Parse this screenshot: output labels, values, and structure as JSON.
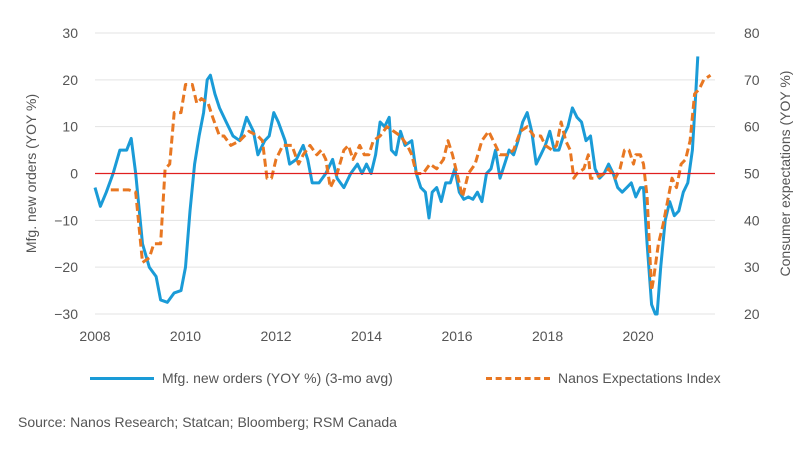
{
  "chart_data": {
    "type": "line",
    "x_range": [
      2008,
      2021.7
    ],
    "x_ticks": [
      "2008",
      "2010",
      "2012",
      "2014",
      "2016",
      "2018",
      "2020"
    ],
    "x_tick_values": [
      2008,
      2010,
      2012,
      2014,
      2016,
      2018,
      2020
    ],
    "y_left": {
      "label": "Mfg. new orders (YOY %)",
      "range": [
        -30,
        30
      ],
      "ticks": [
        "30",
        "20",
        "10",
        "0",
        "−10",
        "−20",
        "−30"
      ],
      "tick_values": [
        30,
        20,
        10,
        0,
        -10,
        -20,
        -30
      ]
    },
    "y_right": {
      "label": "Consumer expectations (YOY %)",
      "range": [
        20,
        80
      ],
      "ticks": [
        "80",
        "70",
        "60",
        "50",
        "40",
        "30",
        "20"
      ],
      "tick_values": [
        80,
        70,
        60,
        50,
        40,
        30,
        20
      ]
    },
    "zero_line_color": "#e02020",
    "series": [
      {
        "name": "Mfg. new orders  (YOY %) (3-mo avg)",
        "axis": "left",
        "color": "#1a9bd7",
        "style": "solid",
        "points": [
          [
            2008.0,
            -3
          ],
          [
            2008.12,
            -7
          ],
          [
            2008.25,
            -4
          ],
          [
            2008.4,
            0
          ],
          [
            2008.55,
            5
          ],
          [
            2008.7,
            5
          ],
          [
            2008.8,
            7.5
          ],
          [
            2008.9,
            0
          ],
          [
            2009.05,
            -15
          ],
          [
            2009.2,
            -20
          ],
          [
            2009.35,
            -22
          ],
          [
            2009.45,
            -27
          ],
          [
            2009.6,
            -27.5
          ],
          [
            2009.75,
            -25.5
          ],
          [
            2009.9,
            -25
          ],
          [
            2010.0,
            -20
          ],
          [
            2010.1,
            -8
          ],
          [
            2010.2,
            2
          ],
          [
            2010.3,
            8
          ],
          [
            2010.4,
            13
          ],
          [
            2010.48,
            20
          ],
          [
            2010.55,
            21
          ],
          [
            2010.65,
            17
          ],
          [
            2010.75,
            14
          ],
          [
            2010.9,
            11
          ],
          [
            2011.05,
            8
          ],
          [
            2011.2,
            7
          ],
          [
            2011.35,
            12
          ],
          [
            2011.5,
            9
          ],
          [
            2011.6,
            4
          ],
          [
            2011.75,
            7
          ],
          [
            2011.85,
            8
          ],
          [
            2011.95,
            13
          ],
          [
            2012.05,
            11
          ],
          [
            2012.2,
            7
          ],
          [
            2012.3,
            2
          ],
          [
            2012.45,
            3
          ],
          [
            2012.6,
            6
          ],
          [
            2012.7,
            3
          ],
          [
            2012.8,
            -2
          ],
          [
            2012.95,
            -2
          ],
          [
            2013.1,
            0
          ],
          [
            2013.25,
            3
          ],
          [
            2013.35,
            -1
          ],
          [
            2013.5,
            -3
          ],
          [
            2013.65,
            0
          ],
          [
            2013.8,
            2
          ],
          [
            2013.9,
            0
          ],
          [
            2014.0,
            2
          ],
          [
            2014.1,
            0
          ],
          [
            2014.2,
            4
          ],
          [
            2014.3,
            11
          ],
          [
            2014.4,
            10
          ],
          [
            2014.5,
            12
          ],
          [
            2014.55,
            5
          ],
          [
            2014.65,
            4
          ],
          [
            2014.75,
            9
          ],
          [
            2014.85,
            6
          ],
          [
            2015.0,
            7
          ],
          [
            2015.1,
            0
          ],
          [
            2015.2,
            -3
          ],
          [
            2015.3,
            -4
          ],
          [
            2015.38,
            -9.5
          ],
          [
            2015.45,
            -4
          ],
          [
            2015.55,
            -3
          ],
          [
            2015.65,
            -6
          ],
          [
            2015.75,
            -2
          ],
          [
            2015.85,
            -2
          ],
          [
            2015.95,
            1
          ],
          [
            2016.05,
            -4
          ],
          [
            2016.15,
            -5.5
          ],
          [
            2016.25,
            -5
          ],
          [
            2016.35,
            -5.5
          ],
          [
            2016.45,
            -4
          ],
          [
            2016.55,
            -6
          ],
          [
            2016.65,
            0
          ],
          [
            2016.75,
            1
          ],
          [
            2016.85,
            5
          ],
          [
            2016.95,
            -1
          ],
          [
            2017.05,
            2
          ],
          [
            2017.15,
            5
          ],
          [
            2017.25,
            4
          ],
          [
            2017.35,
            7
          ],
          [
            2017.45,
            11
          ],
          [
            2017.55,
            13
          ],
          [
            2017.65,
            9
          ],
          [
            2017.75,
            2
          ],
          [
            2017.85,
            4
          ],
          [
            2017.95,
            6
          ],
          [
            2018.05,
            9
          ],
          [
            2018.15,
            5
          ],
          [
            2018.25,
            5
          ],
          [
            2018.35,
            8
          ],
          [
            2018.45,
            10
          ],
          [
            2018.55,
            14
          ],
          [
            2018.65,
            12
          ],
          [
            2018.75,
            11
          ],
          [
            2018.85,
            7
          ],
          [
            2018.95,
            8
          ],
          [
            2019.05,
            1
          ],
          [
            2019.15,
            -1
          ],
          [
            2019.25,
            0
          ],
          [
            2019.35,
            2
          ],
          [
            2019.45,
            0
          ],
          [
            2019.55,
            -3
          ],
          [
            2019.65,
            -4
          ],
          [
            2019.75,
            -3
          ],
          [
            2019.85,
            -2
          ],
          [
            2019.95,
            -5
          ],
          [
            2020.05,
            -3
          ],
          [
            2020.12,
            -3
          ],
          [
            2020.2,
            -15
          ],
          [
            2020.3,
            -28
          ],
          [
            2020.38,
            -30
          ],
          [
            2020.42,
            -30
          ],
          [
            2020.5,
            -20
          ],
          [
            2020.6,
            -10
          ],
          [
            2020.7,
            -6
          ],
          [
            2020.8,
            -9
          ],
          [
            2020.9,
            -8
          ],
          [
            2021.0,
            -4
          ],
          [
            2021.1,
            -2
          ],
          [
            2021.2,
            5
          ],
          [
            2021.28,
            18
          ],
          [
            2021.32,
            25
          ]
        ]
      },
      {
        "name": "Nanos Expectations Index",
        "axis": "right",
        "color": "#e87722",
        "style": "dashed",
        "points": [
          [
            2008.35,
            46.5
          ],
          [
            2008.75,
            46.5
          ],
          [
            2008.9,
            46
          ],
          [
            2009.05,
            31
          ],
          [
            2009.2,
            32
          ],
          [
            2009.3,
            35
          ],
          [
            2009.45,
            35
          ],
          [
            2009.55,
            51
          ],
          [
            2009.65,
            52
          ],
          [
            2009.75,
            63
          ],
          [
            2009.9,
            63
          ],
          [
            2010.0,
            69
          ],
          [
            2010.15,
            69
          ],
          [
            2010.25,
            65
          ],
          [
            2010.35,
            66
          ],
          [
            2010.5,
            65
          ],
          [
            2010.6,
            62
          ],
          [
            2010.75,
            58
          ],
          [
            2010.85,
            58
          ],
          [
            2011.0,
            56
          ],
          [
            2011.2,
            57
          ],
          [
            2011.4,
            59
          ],
          [
            2011.6,
            58
          ],
          [
            2011.7,
            57
          ],
          [
            2011.8,
            49
          ],
          [
            2011.9,
            49
          ],
          [
            2012.0,
            53
          ],
          [
            2012.15,
            56
          ],
          [
            2012.35,
            56
          ],
          [
            2012.5,
            52
          ],
          [
            2012.6,
            54
          ],
          [
            2012.75,
            56
          ],
          [
            2012.9,
            54
          ],
          [
            2013.0,
            55
          ],
          [
            2013.1,
            53
          ],
          [
            2013.2,
            47
          ],
          [
            2013.35,
            50
          ],
          [
            2013.5,
            55
          ],
          [
            2013.6,
            56
          ],
          [
            2013.7,
            53
          ],
          [
            2013.85,
            56
          ],
          [
            2013.95,
            54
          ],
          [
            2014.05,
            54
          ],
          [
            2014.15,
            57
          ],
          [
            2014.3,
            58
          ],
          [
            2014.45,
            60
          ],
          [
            2014.6,
            59
          ],
          [
            2014.75,
            58
          ],
          [
            2014.9,
            56
          ],
          [
            2015.0,
            54
          ],
          [
            2015.1,
            50
          ],
          [
            2015.25,
            50
          ],
          [
            2015.4,
            52
          ],
          [
            2015.55,
            51
          ],
          [
            2015.7,
            53
          ],
          [
            2015.8,
            57
          ],
          [
            2015.9,
            54
          ],
          [
            2016.0,
            50
          ],
          [
            2016.12,
            45
          ],
          [
            2016.25,
            50
          ],
          [
            2016.4,
            52
          ],
          [
            2016.55,
            57
          ],
          [
            2016.7,
            59
          ],
          [
            2016.85,
            56
          ],
          [
            2016.95,
            54
          ],
          [
            2017.1,
            54
          ],
          [
            2017.25,
            55
          ],
          [
            2017.4,
            59
          ],
          [
            2017.55,
            60
          ],
          [
            2017.7,
            58
          ],
          [
            2017.85,
            58
          ],
          [
            2017.95,
            56
          ],
          [
            2018.1,
            55
          ],
          [
            2018.2,
            56
          ],
          [
            2018.3,
            61
          ],
          [
            2018.4,
            57
          ],
          [
            2018.5,
            55
          ],
          [
            2018.58,
            49
          ],
          [
            2018.65,
            50
          ],
          [
            2018.8,
            51
          ],
          [
            2018.9,
            54
          ],
          [
            2018.95,
            49
          ],
          [
            2019.05,
            49
          ],
          [
            2019.25,
            50
          ],
          [
            2019.35,
            51
          ],
          [
            2019.5,
            49
          ],
          [
            2019.6,
            51
          ],
          [
            2019.7,
            55
          ],
          [
            2019.8,
            55
          ],
          [
            2019.9,
            52
          ],
          [
            2019.95,
            54
          ],
          [
            2020.05,
            54
          ],
          [
            2020.12,
            52
          ],
          [
            2020.2,
            45
          ],
          [
            2020.3,
            25
          ],
          [
            2020.35,
            28
          ],
          [
            2020.45,
            35
          ],
          [
            2020.55,
            39
          ],
          [
            2020.65,
            44
          ],
          [
            2020.75,
            49
          ],
          [
            2020.85,
            47
          ],
          [
            2020.95,
            52
          ],
          [
            2021.05,
            53
          ],
          [
            2021.15,
            57
          ],
          [
            2021.25,
            67
          ],
          [
            2021.35,
            68
          ],
          [
            2021.45,
            70
          ],
          [
            2021.6,
            71
          ]
        ]
      }
    ]
  },
  "legend": {
    "item1": "Mfg. new orders  (YOY %) (3-mo avg)",
    "item2": "Nanos Expectations Index"
  },
  "source": "Source: Nanos Research; Statcan; Bloomberg; RSM Canada"
}
